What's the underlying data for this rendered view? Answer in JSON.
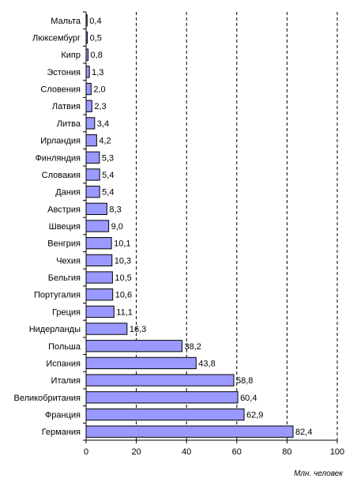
{
  "chart_data": {
    "type": "bar",
    "orientation": "horizontal",
    "title": "",
    "xlabel": "Млн. человек",
    "ylabel": "",
    "xlim": [
      0,
      100
    ],
    "xticks": [
      0,
      20,
      40,
      60,
      80,
      100
    ],
    "grid": "vertical dashed",
    "bar_color": "#9999ff",
    "bar_edge_color": "#000000",
    "categories": [
      "Мальта",
      "Люксембург",
      "Кипр",
      "Эстония",
      "Словения",
      "Латвия",
      "Литва",
      "Ирландия",
      "Финляндия",
      "Словакия",
      "Дания",
      "Австрия",
      "Швеция",
      "Венгрия",
      "Чехия",
      "Бельгия",
      "Португалия",
      "Греция",
      "Нидерланды",
      "Польша",
      "Испания",
      "Италия",
      "Великобритания",
      "Франция",
      "Германия"
    ],
    "values": [
      0.4,
      0.5,
      0.8,
      1.3,
      2.0,
      2.3,
      3.4,
      4.2,
      5.3,
      5.4,
      5.4,
      8.3,
      9.0,
      10.1,
      10.3,
      10.5,
      10.6,
      11.1,
      16.3,
      38.2,
      43.8,
      58.8,
      60.4,
      62.9,
      82.4
    ],
    "value_labels": [
      "0,4",
      "0,5",
      "0,8",
      "1,3",
      "2,0",
      "2,3",
      "3,4",
      "4,2",
      "5,3",
      "5,4",
      "5,4",
      "8,3",
      "9,0",
      "10,1",
      "10,3",
      "10,5",
      "10,6",
      "11,1",
      "16,3",
      "38,2",
      "43,8",
      "58,8",
      "60,4",
      "62,9",
      "82,4"
    ]
  }
}
